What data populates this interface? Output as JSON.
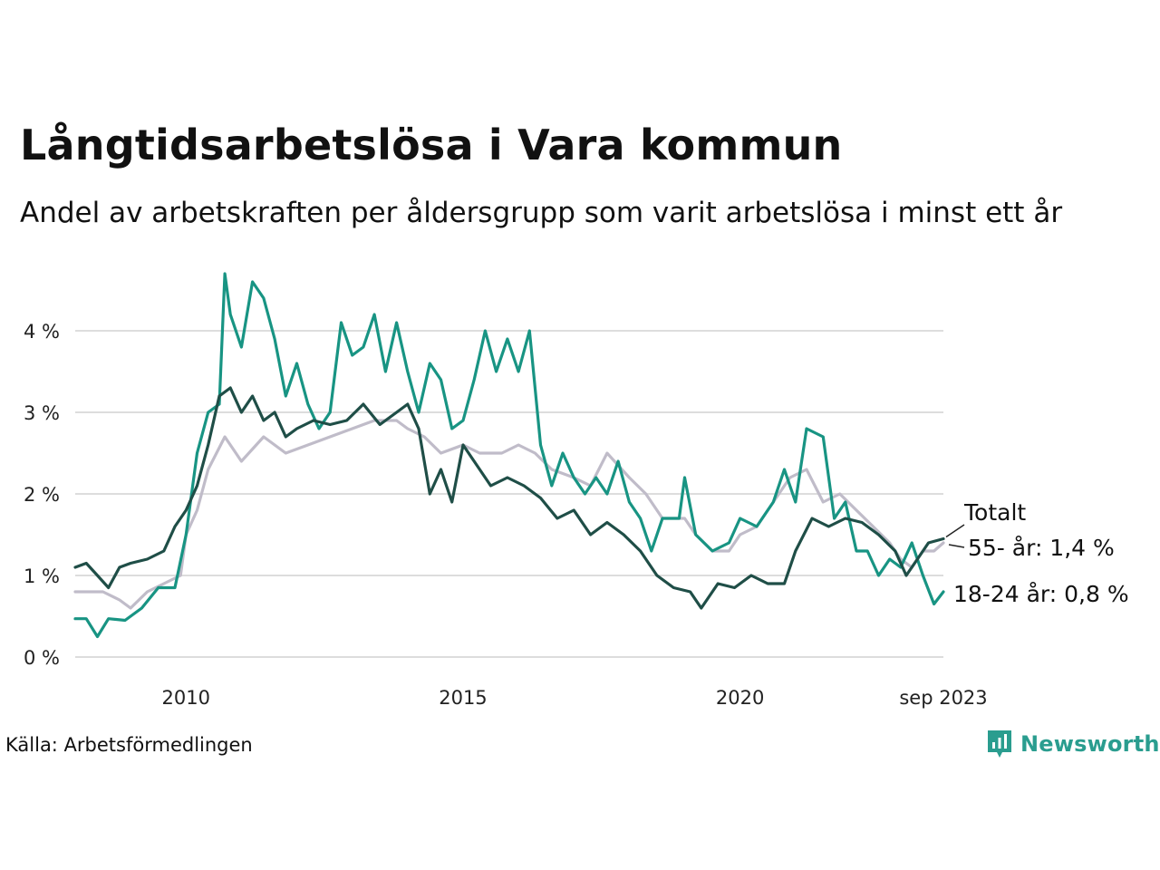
{
  "title": "Långtidsarbetslösa i Vara kommun",
  "subtitle": "Andel av arbetskraften per åldersgrupp som varit arbetslösa i minst ett år",
  "source": "Källa: Arbetsförmedlingen",
  "brand": "Newsworthy",
  "colors": {
    "Totalt": "#1f4e47",
    "55- år": "#c0bcc9",
    "18-24 år": "#189483",
    "grid": "#dddddd",
    "brand": "#2a9d8f"
  },
  "chart_data": {
    "type": "line",
    "title": "Långtidsarbetslösa i Vara kommun",
    "xlabel": "",
    "ylabel": "",
    "x_ticks": [
      {
        "value": 2010.0,
        "label": "2010"
      },
      {
        "value": 2015.0,
        "label": "2015"
      },
      {
        "value": 2020.0,
        "label": "2020"
      },
      {
        "value": 2023.67,
        "label": "sep 2023"
      }
    ],
    "y_ticks": [
      {
        "value": 0,
        "label": "0 %"
      },
      {
        "value": 1,
        "label": "1 %"
      },
      {
        "value": 2,
        "label": "2 %"
      },
      {
        "value": 3,
        "label": "3 %"
      },
      {
        "value": 4,
        "label": "4 %"
      }
    ],
    "xlim": [
      2008.0,
      2023.67
    ],
    "ylim": [
      0,
      4.8
    ],
    "series": [
      {
        "name": "55- år",
        "end_label": "55- år: 1,4 %",
        "points": [
          [
            2008.0,
            0.8
          ],
          [
            2008.5,
            0.8
          ],
          [
            2008.8,
            0.7
          ],
          [
            2009.0,
            0.6
          ],
          [
            2009.3,
            0.8
          ],
          [
            2009.6,
            0.9
          ],
          [
            2009.9,
            1.0
          ],
          [
            2010.0,
            1.5
          ],
          [
            2010.2,
            1.8
          ],
          [
            2010.4,
            2.3
          ],
          [
            2010.7,
            2.7
          ],
          [
            2011.0,
            2.4
          ],
          [
            2011.4,
            2.7
          ],
          [
            2011.8,
            2.5
          ],
          [
            2012.2,
            2.6
          ],
          [
            2012.6,
            2.7
          ],
          [
            2013.0,
            2.8
          ],
          [
            2013.4,
            2.9
          ],
          [
            2013.8,
            2.9
          ],
          [
            2014.0,
            2.8
          ],
          [
            2014.3,
            2.7
          ],
          [
            2014.6,
            2.5
          ],
          [
            2015.0,
            2.6
          ],
          [
            2015.3,
            2.5
          ],
          [
            2015.7,
            2.5
          ],
          [
            2016.0,
            2.6
          ],
          [
            2016.3,
            2.5
          ],
          [
            2016.6,
            2.3
          ],
          [
            2017.0,
            2.2
          ],
          [
            2017.3,
            2.1
          ],
          [
            2017.6,
            2.5
          ],
          [
            2018.0,
            2.2
          ],
          [
            2018.3,
            2.0
          ],
          [
            2018.6,
            1.7
          ],
          [
            2019.0,
            1.7
          ],
          [
            2019.2,
            1.5
          ],
          [
            2019.5,
            1.3
          ],
          [
            2019.8,
            1.3
          ],
          [
            2020.0,
            1.5
          ],
          [
            2020.3,
            1.6
          ],
          [
            2020.6,
            1.9
          ],
          [
            2020.9,
            2.2
          ],
          [
            2021.2,
            2.3
          ],
          [
            2021.5,
            1.9
          ],
          [
            2021.8,
            2.0
          ],
          [
            2022.1,
            1.8
          ],
          [
            2022.4,
            1.6
          ],
          [
            2022.7,
            1.4
          ],
          [
            2022.9,
            1.2
          ],
          [
            2023.1,
            1.1
          ],
          [
            2023.3,
            1.3
          ],
          [
            2023.5,
            1.3
          ],
          [
            2023.67,
            1.4
          ]
        ]
      },
      {
        "name": "18-24 år",
        "end_label": "18-24 år: 0,8 %",
        "points": [
          [
            2008.0,
            0.47
          ],
          [
            2008.2,
            0.47
          ],
          [
            2008.4,
            0.25
          ],
          [
            2008.6,
            0.47
          ],
          [
            2008.9,
            0.45
          ],
          [
            2009.2,
            0.6
          ],
          [
            2009.5,
            0.85
          ],
          [
            2009.8,
            0.85
          ],
          [
            2010.0,
            1.5
          ],
          [
            2010.2,
            2.5
          ],
          [
            2010.4,
            3.0
          ],
          [
            2010.6,
            3.1
          ],
          [
            2010.7,
            4.7
          ],
          [
            2010.8,
            4.2
          ],
          [
            2011.0,
            3.8
          ],
          [
            2011.2,
            4.6
          ],
          [
            2011.4,
            4.4
          ],
          [
            2011.6,
            3.9
          ],
          [
            2011.8,
            3.2
          ],
          [
            2012.0,
            3.6
          ],
          [
            2012.2,
            3.1
          ],
          [
            2012.4,
            2.8
          ],
          [
            2012.6,
            3.0
          ],
          [
            2012.8,
            4.1
          ],
          [
            2013.0,
            3.7
          ],
          [
            2013.2,
            3.8
          ],
          [
            2013.4,
            4.2
          ],
          [
            2013.6,
            3.5
          ],
          [
            2013.8,
            4.1
          ],
          [
            2014.0,
            3.5
          ],
          [
            2014.2,
            3.0
          ],
          [
            2014.4,
            3.6
          ],
          [
            2014.6,
            3.4
          ],
          [
            2014.8,
            2.8
          ],
          [
            2015.0,
            2.9
          ],
          [
            2015.2,
            3.4
          ],
          [
            2015.4,
            4.0
          ],
          [
            2015.6,
            3.5
          ],
          [
            2015.8,
            3.9
          ],
          [
            2016.0,
            3.5
          ],
          [
            2016.2,
            4.0
          ],
          [
            2016.4,
            2.6
          ],
          [
            2016.6,
            2.1
          ],
          [
            2016.8,
            2.5
          ],
          [
            2017.0,
            2.2
          ],
          [
            2017.2,
            2.0
          ],
          [
            2017.4,
            2.2
          ],
          [
            2017.6,
            2.0
          ],
          [
            2017.8,
            2.4
          ],
          [
            2018.0,
            1.9
          ],
          [
            2018.2,
            1.7
          ],
          [
            2018.4,
            1.3
          ],
          [
            2018.6,
            1.7
          ],
          [
            2018.9,
            1.7
          ],
          [
            2019.0,
            2.2
          ],
          [
            2019.2,
            1.5
          ],
          [
            2019.5,
            1.3
          ],
          [
            2019.8,
            1.4
          ],
          [
            2020.0,
            1.7
          ],
          [
            2020.3,
            1.6
          ],
          [
            2020.6,
            1.9
          ],
          [
            2020.8,
            2.3
          ],
          [
            2021.0,
            1.9
          ],
          [
            2021.2,
            2.8
          ],
          [
            2021.5,
            2.7
          ],
          [
            2021.7,
            1.7
          ],
          [
            2021.9,
            1.9
          ],
          [
            2022.1,
            1.3
          ],
          [
            2022.3,
            1.3
          ],
          [
            2022.5,
            1.0
          ],
          [
            2022.7,
            1.2
          ],
          [
            2022.9,
            1.1
          ],
          [
            2023.1,
            1.4
          ],
          [
            2023.3,
            1.0
          ],
          [
            2023.5,
            0.65
          ],
          [
            2023.67,
            0.8
          ]
        ]
      },
      {
        "name": "Totalt",
        "end_label": "Totalt",
        "points": [
          [
            2008.0,
            1.1
          ],
          [
            2008.2,
            1.15
          ],
          [
            2008.4,
            1.0
          ],
          [
            2008.6,
            0.85
          ],
          [
            2008.8,
            1.1
          ],
          [
            2009.0,
            1.15
          ],
          [
            2009.3,
            1.2
          ],
          [
            2009.6,
            1.3
          ],
          [
            2009.8,
            1.6
          ],
          [
            2010.0,
            1.8
          ],
          [
            2010.2,
            2.1
          ],
          [
            2010.4,
            2.6
          ],
          [
            2010.6,
            3.2
          ],
          [
            2010.8,
            3.3
          ],
          [
            2011.0,
            3.0
          ],
          [
            2011.2,
            3.2
          ],
          [
            2011.4,
            2.9
          ],
          [
            2011.6,
            3.0
          ],
          [
            2011.8,
            2.7
          ],
          [
            2012.0,
            2.8
          ],
          [
            2012.3,
            2.9
          ],
          [
            2012.6,
            2.85
          ],
          [
            2012.9,
            2.9
          ],
          [
            2013.2,
            3.1
          ],
          [
            2013.5,
            2.85
          ],
          [
            2013.8,
            3.0
          ],
          [
            2014.0,
            3.1
          ],
          [
            2014.2,
            2.8
          ],
          [
            2014.4,
            2.0
          ],
          [
            2014.6,
            2.3
          ],
          [
            2014.8,
            1.9
          ],
          [
            2015.0,
            2.6
          ],
          [
            2015.2,
            2.4
          ],
          [
            2015.5,
            2.1
          ],
          [
            2015.8,
            2.2
          ],
          [
            2016.1,
            2.1
          ],
          [
            2016.4,
            1.95
          ],
          [
            2016.7,
            1.7
          ],
          [
            2017.0,
            1.8
          ],
          [
            2017.3,
            1.5
          ],
          [
            2017.6,
            1.65
          ],
          [
            2017.9,
            1.5
          ],
          [
            2018.2,
            1.3
          ],
          [
            2018.5,
            1.0
          ],
          [
            2018.8,
            0.85
          ],
          [
            2019.1,
            0.8
          ],
          [
            2019.3,
            0.6
          ],
          [
            2019.6,
            0.9
          ],
          [
            2019.9,
            0.85
          ],
          [
            2020.2,
            1.0
          ],
          [
            2020.5,
            0.9
          ],
          [
            2020.8,
            0.9
          ],
          [
            2021.0,
            1.3
          ],
          [
            2021.3,
            1.7
          ],
          [
            2021.6,
            1.6
          ],
          [
            2021.9,
            1.7
          ],
          [
            2022.2,
            1.65
          ],
          [
            2022.5,
            1.5
          ],
          [
            2022.8,
            1.3
          ],
          [
            2023.0,
            1.0
          ],
          [
            2023.2,
            1.2
          ],
          [
            2023.4,
            1.4
          ],
          [
            2023.67,
            1.45
          ]
        ]
      }
    ]
  }
}
